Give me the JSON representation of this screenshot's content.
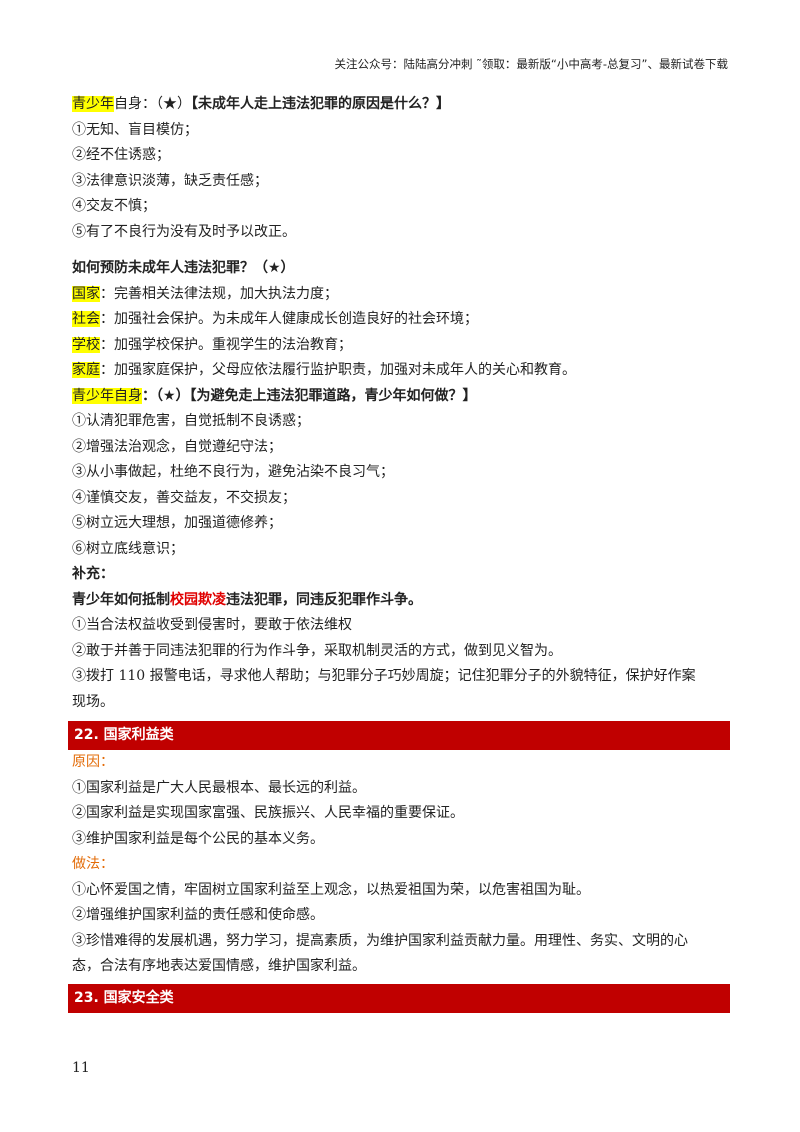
{
  "header": "关注公众号：陆陆高分冲刺  ˜领取：最新版“小中高考-总复习”、最新试卷下载",
  "s1": {
    "hl": "青少年",
    "rest": "自身：（★）",
    "q": "【未成年人走上违法犯罪的原因是什么？】",
    "items": [
      "①无知、盲目模仿；",
      "②经不住诱惑；",
      "③法律意识淡薄，缺乏责任感；",
      "④交友不慎；",
      "⑤有了不良行为没有及时予以改正。"
    ]
  },
  "s2": {
    "title": "如何预防未成年人违法犯罪？（★）",
    "rows": [
      {
        "k": "国家",
        "v": "：完善相关法律法规，加大执法力度；"
      },
      {
        "k": "社会",
        "v": "：加强社会保护。为未成年人健康成长创造良好的社会环境；"
      },
      {
        "k": "学校",
        "v": "：加强学校保护。重视学生的法治教育；"
      },
      {
        "k": "家庭",
        "v": "：加强家庭保护，父母应依法履行监护职责，加强对未成年人的关心和教育。"
      }
    ],
    "self_hl": "青少年自身",
    "self_rest": "：（★）【为避免走上违法犯罪道路，青少年如何做？】",
    "items": [
      "①认清犯罪危害，自觉抵制不良诱惑；",
      "②增强法治观念，自觉遵纪守法；",
      "③从小事做起，杜绝不良行为，避免沾染不良习气；",
      "④谨慎交友，善交益友，不交损友；",
      "⑤树立远大理想，加强道德修养；",
      "⑥树立底线意识；"
    ]
  },
  "s3": {
    "label": "补充：",
    "q1": "青少年如何抵制",
    "q_red": "校园欺凌",
    "q2": "违法犯罪，同违反犯罪作斗争。",
    "items": [
      "①当合法权益收受到侵害时，要敢于依法维权",
      "②敢于并善于同违法犯罪的行为作斗争，采取机制灵活的方式，做到见义智为。",
      "③拨打 110 报警电话，寻求他人帮助；与犯罪分子巧妙周旋；记住犯罪分子的外貌特征，保护好作案",
      "现场。"
    ]
  },
  "sec22": {
    "title": "22. 国家利益类",
    "reason": "原因：",
    "reasons": [
      "①国家利益是广大人民最根本、最长远的利益。",
      "②国家利益是实现国家富强、民族振兴、人民幸福的重要保证。",
      "③维护国家利益是每个公民的基本义务。"
    ],
    "how": "做法：",
    "hows": [
      "①心怀爱国之情，牢固树立国家利益至上观念，以热爱祖国为荣，以危害祖国为耻。",
      "②增强维护国家利益的责任感和使命感。",
      "③珍惜难得的发展机遇，努力学习，提高素质，为维护国家利益贡献力量。用理性、务实、文明的心",
      "态，合法有序地表达爱国情感，维护国家利益。"
    ]
  },
  "sec23": {
    "title": "23. 国家安全类"
  },
  "page_number": "11",
  "colors": {
    "section_bar": "#c00000",
    "highlight": "#ffff00",
    "red_text": "#e00000",
    "orange_label": "#e36c09"
  }
}
